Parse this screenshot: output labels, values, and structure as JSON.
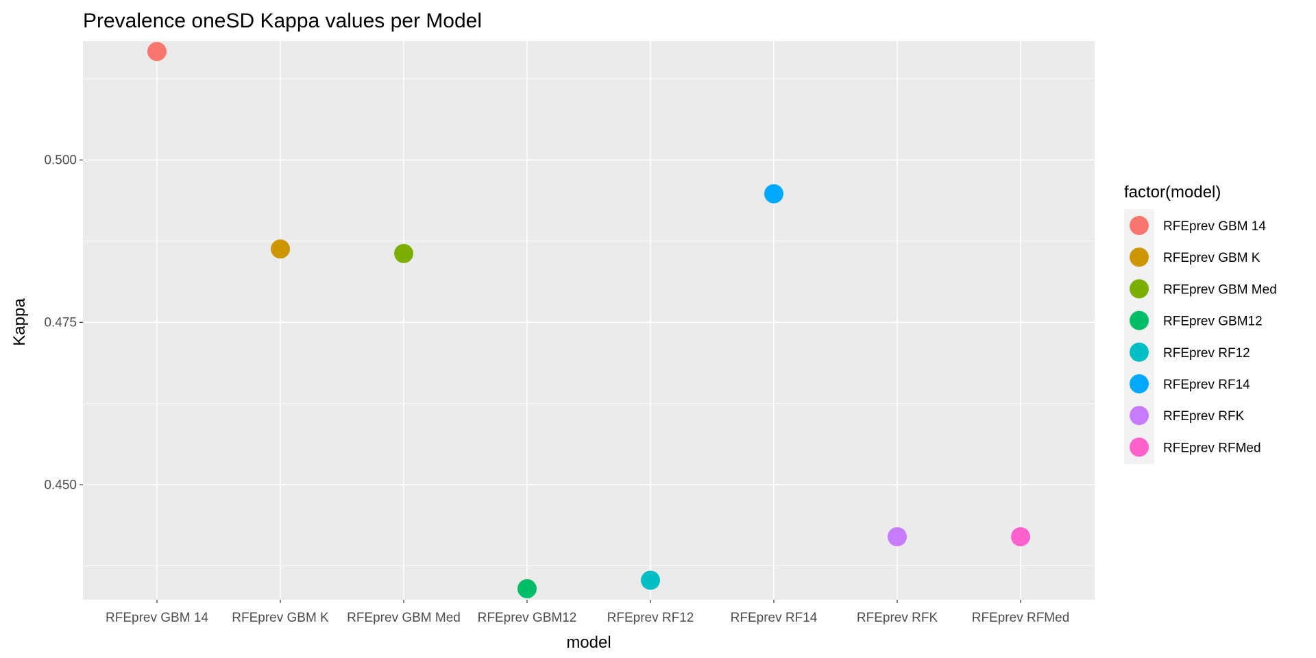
{
  "chart_data": {
    "type": "scatter",
    "title": "Prevalence oneSD Kappa values per Model",
    "xlabel": "model",
    "ylabel": "Kappa",
    "categories": [
      "RFEprev GBM 14",
      "RFEprev GBM K",
      "RFEprev GBM Med",
      "RFEprev GBM12",
      "RFEprev RF12",
      "RFEprev RF14",
      "RFEprev RFK",
      "RFEprev RFMed"
    ],
    "values": [
      0.5167,
      0.4863,
      0.4856,
      0.434,
      0.4353,
      0.4948,
      0.442,
      0.442
    ],
    "colors": [
      "#F8766D",
      "#CD9600",
      "#7CAE00",
      "#00BE67",
      "#00BFC4",
      "#00A9FF",
      "#C77CFF",
      "#FF61CC"
    ],
    "ylim": [
      0.4323,
      0.5183
    ],
    "y_major_ticks": [
      0.45,
      0.475,
      0.5
    ],
    "y_tick_labels": [
      "0.450",
      "0.475",
      "0.500"
    ],
    "y_minor_ticks": [
      0.4375,
      0.4625,
      0.4875,
      0.5125
    ],
    "grid": true,
    "legend": {
      "title": "factor(model)",
      "position": "right"
    }
  }
}
